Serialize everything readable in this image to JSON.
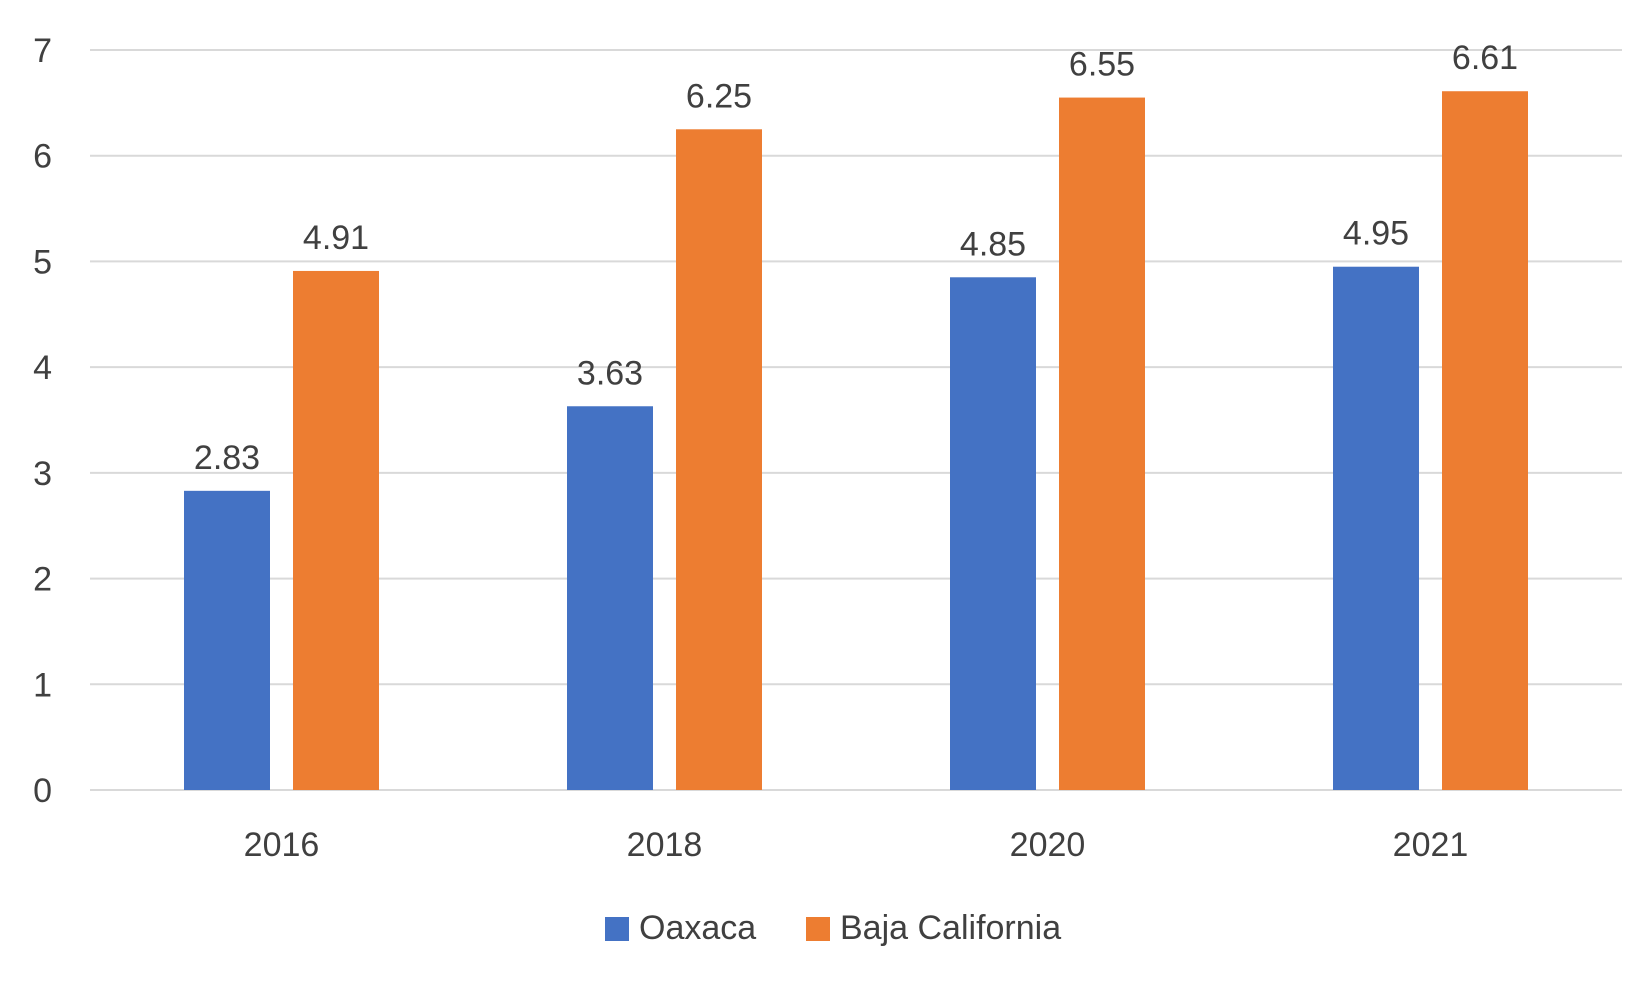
{
  "chart_data": {
    "type": "bar",
    "title": "",
    "xlabel": "",
    "ylabel": "",
    "categories": [
      "2016",
      "2018",
      "2020",
      "2021"
    ],
    "series": [
      {
        "name": "Oaxaca",
        "color": "#4472c4",
        "values": [
          2.83,
          3.63,
          4.85,
          4.95
        ]
      },
      {
        "name": "Baja California",
        "color": "#ed7d31",
        "values": [
          4.91,
          6.25,
          6.55,
          6.61
        ]
      }
    ],
    "ylim": [
      0,
      7
    ],
    "yticks": [
      "0",
      "1",
      "2",
      "3",
      "4",
      "5",
      "6",
      "7"
    ],
    "data_labels": [
      [
        "2.83",
        "3.63",
        "4.85",
        "4.95"
      ],
      [
        "4.91",
        "6.25",
        "6.55",
        "6.61"
      ]
    ],
    "grid": true,
    "legend_position": "bottom"
  }
}
